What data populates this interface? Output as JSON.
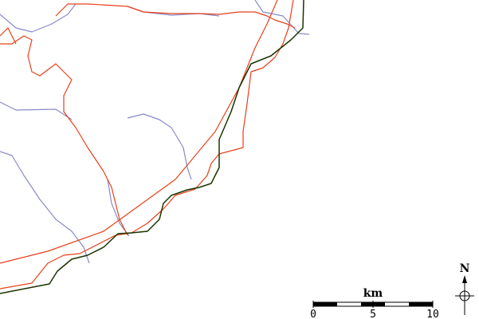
{
  "colors": {
    "coastline": "#1a3300",
    "major_road": "#e8401a",
    "minor_road": "#8a8ac8",
    "background": "#ffffff"
  },
  "scale_bar": {
    "unit": "km",
    "labels": [
      "0",
      "5",
      "10"
    ]
  },
  "north_arrow": {
    "label": "N"
  }
}
